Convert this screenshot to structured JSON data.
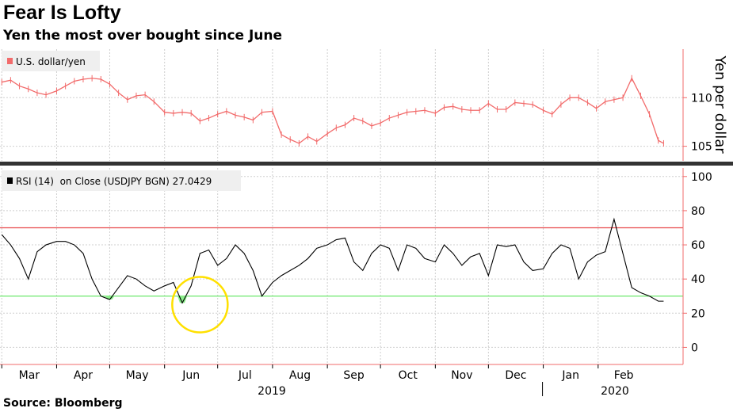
{
  "header": {
    "title": "Fear Is Lofty",
    "subtitle": "Yen the most over bought since June"
  },
  "footer": {
    "source": "Source: Bloomberg"
  },
  "colors": {
    "price": "#f26b6b",
    "rsi": "#000000",
    "overbought": "#e8474a",
    "oversold": "#6ee86e",
    "oversold_fill": "#8cf08c",
    "highlight_circle": "#ffe000",
    "grid": "#cfcfcf",
    "axis": "#f26b6b",
    "separator": "#333333"
  },
  "chart_data": [
    {
      "type": "line",
      "panel": "price",
      "legend": "U.S. dollar/yen",
      "ylabel": "Yen per dollar",
      "ylim": [
        103.5,
        115
      ],
      "yticks": [
        105,
        110
      ],
      "x": [
        "2019-03-01",
        "2019-03-06",
        "2019-03-11",
        "2019-03-16",
        "2019-03-21",
        "2019-03-26",
        "2019-04-01",
        "2019-04-06",
        "2019-04-11",
        "2019-04-16",
        "2019-04-21",
        "2019-04-26",
        "2019-05-01",
        "2019-05-06",
        "2019-05-11",
        "2019-05-16",
        "2019-05-21",
        "2019-05-26",
        "2019-06-01",
        "2019-06-06",
        "2019-06-11",
        "2019-06-16",
        "2019-06-21",
        "2019-06-26",
        "2019-07-01",
        "2019-07-06",
        "2019-07-11",
        "2019-07-16",
        "2019-07-21",
        "2019-07-26",
        "2019-08-01",
        "2019-08-06",
        "2019-08-11",
        "2019-08-16",
        "2019-08-21",
        "2019-08-26",
        "2019-09-01",
        "2019-09-06",
        "2019-09-11",
        "2019-09-16",
        "2019-09-21",
        "2019-09-26",
        "2019-10-01",
        "2019-10-06",
        "2019-10-11",
        "2019-10-16",
        "2019-10-21",
        "2019-10-26",
        "2019-11-01",
        "2019-11-06",
        "2019-11-11",
        "2019-11-16",
        "2019-11-21",
        "2019-11-26",
        "2019-12-01",
        "2019-12-06",
        "2019-12-11",
        "2019-12-16",
        "2019-12-21",
        "2019-12-26",
        "2020-01-01",
        "2020-01-06",
        "2020-01-11",
        "2020-01-16",
        "2020-01-21",
        "2020-01-26",
        "2020-01-31",
        "2020-02-05",
        "2020-02-10",
        "2020-02-15",
        "2020-02-20",
        "2020-02-25",
        "2020-03-01",
        "2020-03-06",
        "2020-03-09"
      ],
      "values": [
        111.6,
        111.8,
        111.2,
        110.9,
        110.5,
        110.3,
        110.7,
        111.2,
        111.7,
        111.9,
        112.0,
        111.9,
        111.4,
        110.5,
        109.8,
        110.2,
        110.3,
        109.6,
        108.5,
        108.4,
        108.5,
        108.4,
        107.6,
        107.9,
        108.3,
        108.6,
        108.2,
        108.0,
        107.7,
        108.5,
        108.6,
        106.2,
        105.7,
        105.3,
        106.0,
        105.5,
        106.3,
        106.9,
        107.2,
        107.9,
        107.6,
        107.1,
        107.4,
        107.9,
        108.2,
        108.5,
        108.6,
        108.7,
        108.4,
        109.0,
        109.1,
        108.8,
        108.7,
        108.7,
        109.4,
        108.8,
        108.8,
        109.5,
        109.4,
        109.3,
        108.7,
        108.3,
        109.3,
        110.0,
        110.0,
        109.5,
        108.9,
        109.6,
        109.8,
        110.0,
        112.0,
        110.2,
        108.3,
        105.6,
        105.3
      ]
    },
    {
      "type": "line",
      "panel": "rsi",
      "legend": "RSI (14)  on Close (USDJPY BGN) 27.0429",
      "ylim": [
        -10,
        105
      ],
      "yticks": [
        0,
        20,
        40,
        60,
        80,
        100
      ],
      "overbought": 70,
      "oversold": 30,
      "last_value": 27.0429,
      "x": [
        "2019-03-01",
        "2019-03-06",
        "2019-03-11",
        "2019-03-16",
        "2019-03-21",
        "2019-03-26",
        "2019-04-01",
        "2019-04-06",
        "2019-04-11",
        "2019-04-16",
        "2019-04-21",
        "2019-04-26",
        "2019-05-01",
        "2019-05-06",
        "2019-05-11",
        "2019-05-16",
        "2019-05-21",
        "2019-05-26",
        "2019-06-01",
        "2019-06-06",
        "2019-06-11",
        "2019-06-16",
        "2019-06-21",
        "2019-06-26",
        "2019-07-01",
        "2019-07-06",
        "2019-07-11",
        "2019-07-16",
        "2019-07-21",
        "2019-07-26",
        "2019-08-01",
        "2019-08-06",
        "2019-08-11",
        "2019-08-16",
        "2019-08-21",
        "2019-08-26",
        "2019-09-01",
        "2019-09-06",
        "2019-09-11",
        "2019-09-16",
        "2019-09-21",
        "2019-09-26",
        "2019-10-01",
        "2019-10-06",
        "2019-10-11",
        "2019-10-16",
        "2019-10-21",
        "2019-10-26",
        "2019-11-01",
        "2019-11-06",
        "2019-11-11",
        "2019-11-16",
        "2019-11-21",
        "2019-11-26",
        "2019-12-01",
        "2019-12-06",
        "2019-12-11",
        "2019-12-16",
        "2019-12-21",
        "2019-12-26",
        "2020-01-01",
        "2020-01-06",
        "2020-01-11",
        "2020-01-16",
        "2020-01-21",
        "2020-01-26",
        "2020-01-31",
        "2020-02-05",
        "2020-02-10",
        "2020-02-15",
        "2020-02-20",
        "2020-02-25",
        "2020-03-01",
        "2020-03-06",
        "2020-03-09"
      ],
      "values": [
        66,
        60,
        52,
        40,
        56,
        60,
        62,
        62,
        60,
        55,
        40,
        30,
        28,
        35,
        42,
        40,
        36,
        33,
        36,
        38,
        26,
        36,
        55,
        57,
        48,
        52,
        60,
        55,
        45,
        30,
        38,
        42,
        45,
        48,
        52,
        58,
        60,
        63,
        64,
        50,
        45,
        55,
        60,
        58,
        45,
        60,
        58,
        52,
        50,
        60,
        55,
        48,
        53,
        55,
        42,
        60,
        59,
        60,
        50,
        45,
        46,
        55,
        60,
        58,
        40,
        50,
        54,
        56,
        75,
        55,
        35,
        32,
        30,
        27.0429,
        27.0429
      ]
    }
  ],
  "x_axis": {
    "months": [
      {
        "label": "Mar",
        "date": "2019-03-01"
      },
      {
        "label": "Apr",
        "date": "2019-04-01"
      },
      {
        "label": "May",
        "date": "2019-05-01"
      },
      {
        "label": "Jun",
        "date": "2019-06-01"
      },
      {
        "label": "Jul",
        "date": "2019-07-01"
      },
      {
        "label": "Aug",
        "date": "2019-08-01"
      },
      {
        "label": "Sep",
        "date": "2019-09-01"
      },
      {
        "label": "Oct",
        "date": "2019-10-01"
      },
      {
        "label": "Nov",
        "date": "2019-11-01"
      },
      {
        "label": "Dec",
        "date": "2019-12-01"
      },
      {
        "label": "Jan",
        "date": "2020-01-01"
      },
      {
        "label": "Feb",
        "date": "2020-02-01"
      }
    ],
    "years": [
      {
        "label": "2019",
        "date": "2019-08-15"
      },
      {
        "label": "2020",
        "date": "2020-02-01"
      }
    ],
    "range": [
      "2019-02-28",
      "2020-03-20"
    ]
  },
  "annotation": {
    "shape": "circle",
    "date": "2019-06-21",
    "value": 25
  }
}
